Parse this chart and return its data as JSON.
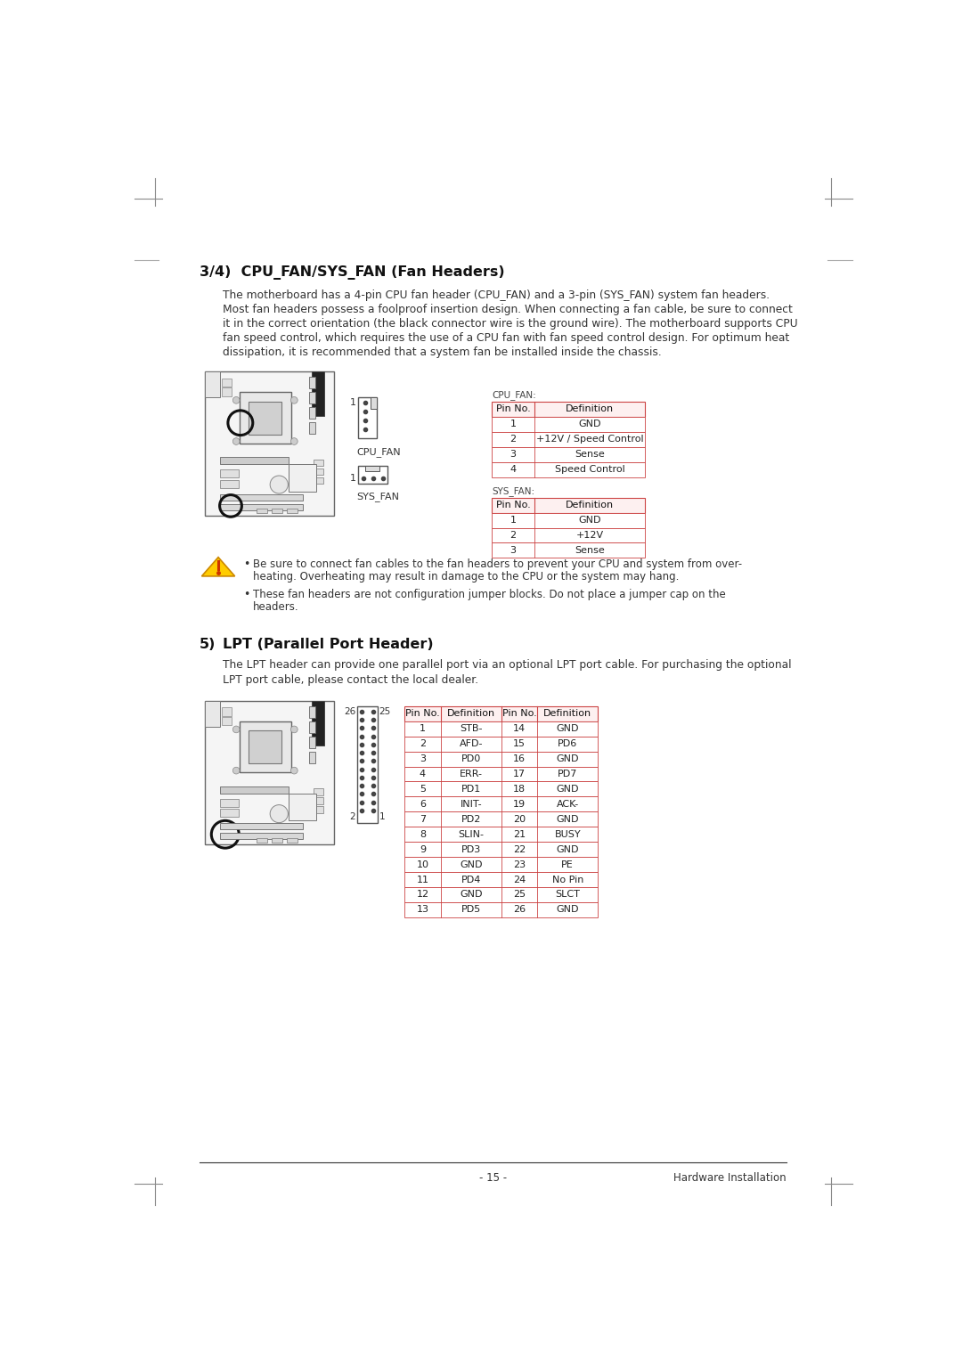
{
  "bg_color": "#ffffff",
  "section1_title": "3/4)  CPU_FAN/SYS_FAN (Fan Headers)",
  "section1_body": [
    "The motherboard has a 4-pin CPU fan header (CPU_FAN) and a 3-pin (SYS_FAN) system fan headers.",
    "Most fan headers possess a foolproof insertion design. When connecting a fan cable, be sure to connect",
    "it in the correct orientation (the black connector wire is the ground wire). The motherboard supports CPU",
    "fan speed control, which requires the use of a CPU fan with fan speed control design. For optimum heat",
    "dissipation, it is recommended that a system fan be installed inside the chassis."
  ],
  "cpu_fan_label": "CPU_FAN:",
  "cpu_fan_table_header": [
    "Pin No.",
    "Definition"
  ],
  "cpu_fan_rows": [
    [
      "1",
      "GND"
    ],
    [
      "2",
      "+12V / Speed Control"
    ],
    [
      "3",
      "Sense"
    ],
    [
      "4",
      "Speed Control"
    ]
  ],
  "sys_fan_label": "SYS_FAN:",
  "sys_fan_table_header": [
    "Pin No.",
    "Definition"
  ],
  "sys_fan_rows": [
    [
      "1",
      "GND"
    ],
    [
      "2",
      "+12V"
    ],
    [
      "3",
      "Sense"
    ]
  ],
  "warning_bullet1_line1": "Be sure to connect fan cables to the fan headers to prevent your CPU and system from over-",
  "warning_bullet1_line2": "heating. Overheating may result in damage to the CPU or the system may hang.",
  "warning_bullet2_line1": "These fan headers are not configuration jumper blocks. Do not place a jumper cap on the",
  "warning_bullet2_line2": "headers.",
  "section2_num": "5)",
  "section2_title": "LPT (Parallel Port Header)",
  "section2_body": [
    "The LPT header can provide one parallel port via an optional LPT port cable. For purchasing the optional",
    "LPT port cable, please contact the local dealer."
  ],
  "lpt_table_header": [
    "Pin No.",
    "Definition",
    "Pin No.",
    "Definition"
  ],
  "lpt_rows": [
    [
      "1",
      "STB-",
      "14",
      "GND"
    ],
    [
      "2",
      "AFD-",
      "15",
      "PD6"
    ],
    [
      "3",
      "PD0",
      "16",
      "GND"
    ],
    [
      "4",
      "ERR-",
      "17",
      "PD7"
    ],
    [
      "5",
      "PD1",
      "18",
      "GND"
    ],
    [
      "6",
      "INIT-",
      "19",
      "ACK-"
    ],
    [
      "7",
      "PD2",
      "20",
      "GND"
    ],
    [
      "8",
      "SLIN-",
      "21",
      "BUSY"
    ],
    [
      "9",
      "PD3",
      "22",
      "GND"
    ],
    [
      "10",
      "GND",
      "23",
      "PE"
    ],
    [
      "11",
      "PD4",
      "24",
      "No Pin"
    ],
    [
      "12",
      "GND",
      "25",
      "SLCT"
    ],
    [
      "13",
      "PD5",
      "26",
      "GND"
    ]
  ],
  "footer_left": "- 15 -",
  "footer_right": "Hardware Installation",
  "header_row_color": "#fdf0f0",
  "table_border_color": "#cc4444",
  "text_color": "#333333",
  "title_color": "#111111",
  "gray_line_color": "#aaaaaa"
}
